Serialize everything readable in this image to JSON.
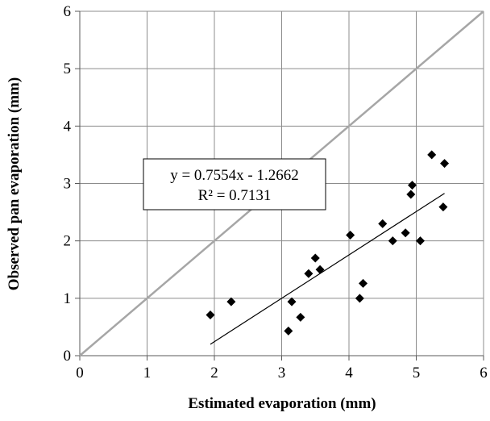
{
  "chart_data": {
    "type": "scatter",
    "title": "",
    "xlabel": "Estimated evaporation (mm)",
    "ylabel": "Observed pan evaporation (mm)",
    "xlim": [
      0,
      6
    ],
    "ylim": [
      0,
      6
    ],
    "x_ticks": [
      "0",
      "1",
      "2",
      "3",
      "4",
      "5",
      "6"
    ],
    "y_ticks": [
      "0",
      "1",
      "2",
      "3",
      "4",
      "5",
      "6"
    ],
    "grid": true,
    "legend": "none",
    "series": [
      {
        "marker": "diamond",
        "color": "#000000",
        "points": [
          [
            1.94,
            0.71
          ],
          [
            2.25,
            0.94
          ],
          [
            3.1,
            0.43
          ],
          [
            3.15,
            0.94
          ],
          [
            3.28,
            0.67
          ],
          [
            3.4,
            1.43
          ],
          [
            3.5,
            1.7
          ],
          [
            3.57,
            1.5
          ],
          [
            4.02,
            2.1
          ],
          [
            4.16,
            1.0
          ],
          [
            4.21,
            1.26
          ],
          [
            4.5,
            2.3
          ],
          [
            4.65,
            2.0
          ],
          [
            4.84,
            2.14
          ],
          [
            4.92,
            2.81
          ],
          [
            4.94,
            2.97
          ],
          [
            5.06,
            2.0
          ],
          [
            5.23,
            3.5
          ],
          [
            5.4,
            2.59
          ],
          [
            5.42,
            3.35
          ]
        ]
      }
    ],
    "reference_line": {
      "type": "1:1",
      "x": [
        0,
        6
      ],
      "y": [
        0,
        6
      ],
      "color": "#a6a6a6"
    },
    "trendline": {
      "type": "linear",
      "slope": 0.7554,
      "intercept": -1.2662,
      "x_range": [
        1.94,
        5.42
      ],
      "color": "#000000",
      "equation": "y = 0.7554x - 1.2662",
      "r2": "R² = 0.7131"
    }
  }
}
